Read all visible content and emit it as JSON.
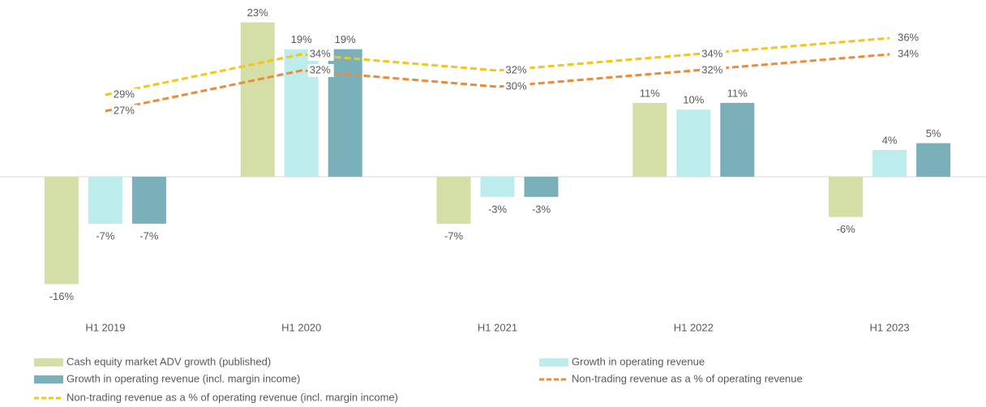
{
  "chart_data": {
    "type": "bar",
    "categories": [
      "H1 2019",
      "H1 2020",
      "H1 2021",
      "H1 2022",
      "H1 2023"
    ],
    "ylim": [
      -18,
      25
    ],
    "y2lim": [
      4,
      39.6
    ],
    "grid": false,
    "series": [
      {
        "name": "Cash equity market ADV growth (published)",
        "color": "#d4dfa8",
        "values": [
          -16,
          23,
          -7,
          11,
          -6
        ],
        "value_labels": [
          "-16%",
          "23%",
          "-7%",
          "11%",
          "-6%"
        ]
      },
      {
        "name": "Growth in operating revenue",
        "color": "#bdeced",
        "values": [
          -7,
          19,
          -3,
          10,
          4
        ],
        "value_labels": [
          "-7%",
          "19%",
          "-3%",
          "10%",
          "4%"
        ]
      },
      {
        "name": "Growth in operating revenue (incl. margin income)",
        "color": "#79b0b9",
        "values": [
          -7,
          19,
          -3,
          11,
          5
        ],
        "value_labels": [
          "-7%",
          "19%",
          "-3%",
          "11%",
          "5%"
        ]
      },
      {
        "name": "Non-trading revenue as a % of operating revenue",
        "color": "#ee8a3c",
        "type": "line",
        "axis": "y2",
        "values": [
          27,
          32,
          30,
          32,
          34
        ],
        "value_labels": [
          "27%",
          "32%",
          "30%",
          "32%",
          "34%"
        ]
      },
      {
        "name": "Non-trading revenue as a % of operating revenue (incl. margin income)",
        "color": "#f5c518",
        "type": "line",
        "axis": "y2",
        "values": [
          29,
          34,
          32,
          34,
          36
        ],
        "value_labels": [
          "29%",
          "34%",
          "32%",
          "34%",
          "36%"
        ]
      }
    ]
  }
}
